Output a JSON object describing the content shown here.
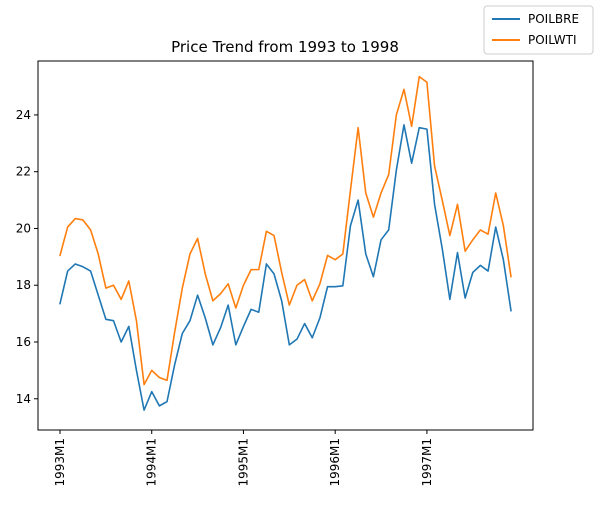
{
  "chart_data": {
    "type": "line",
    "title": "Price Trend from 1993 to 1998",
    "xlabel": "",
    "ylabel": "",
    "x_start": "1993M1",
    "x_tick_labels": [
      "1993M1",
      "1994M1",
      "1995M1",
      "1996M1",
      "1997M1"
    ],
    "x_ticks": [
      "1993M1",
      "1994M1",
      "1995M1",
      "1996M1",
      "1997M1"
    ],
    "y_ticks": [
      14,
      16,
      18,
      20,
      22,
      24
    ],
    "ylim": [
      12.9,
      25.9
    ],
    "grid": false,
    "legend_position": "top-right",
    "x": [
      "1993M1",
      "1993M2",
      "1993M3",
      "1993M4",
      "1993M5",
      "1993M6",
      "1993M7",
      "1993M8",
      "1993M9",
      "1993M10",
      "1993M11",
      "1993M12",
      "1994M1",
      "1994M2",
      "1994M3",
      "1994M4",
      "1994M5",
      "1994M6",
      "1994M7",
      "1994M8",
      "1994M9",
      "1994M10",
      "1994M11",
      "1994M12",
      "1995M1",
      "1995M2",
      "1995M3",
      "1995M4",
      "1995M5",
      "1995M6",
      "1995M7",
      "1995M8",
      "1995M9",
      "1995M10",
      "1995M11",
      "1995M12",
      "1996M1",
      "1996M2",
      "1996M3",
      "1996M4",
      "1996M5",
      "1996M6",
      "1996M7",
      "1996M8",
      "1996M9",
      "1996M10",
      "1996M11",
      "1996M12",
      "1997M1",
      "1997M2",
      "1997M3",
      "1997M4",
      "1997M5",
      "1997M6",
      "1997M7",
      "1997M8",
      "1997M9",
      "1997M10",
      "1997M11",
      "1997M12"
    ],
    "series": [
      {
        "name": "POILBRE",
        "color": "#1f77b4",
        "values": [
          17.35,
          18.5,
          18.75,
          18.65,
          18.5,
          17.65,
          16.8,
          16.75,
          16.0,
          16.55,
          15.0,
          13.6,
          14.25,
          13.75,
          13.9,
          15.2,
          16.3,
          16.75,
          17.65,
          16.85,
          15.9,
          16.5,
          17.3,
          15.9,
          16.55,
          17.15,
          17.05,
          18.75,
          18.4,
          17.45,
          15.9,
          16.1,
          16.65,
          16.15,
          16.85,
          17.95,
          17.95,
          17.98,
          20.1,
          21.0,
          19.1,
          18.3,
          19.6,
          19.95,
          22.05,
          23.65,
          22.3,
          23.55,
          23.5,
          20.85,
          19.3,
          17.5,
          19.15,
          17.55,
          18.45,
          18.7,
          18.5,
          20.05,
          18.9,
          17.1
        ]
      },
      {
        "name": "POILWTI",
        "color": "#ff7f0e",
        "values": [
          19.05,
          20.05,
          20.35,
          20.3,
          19.95,
          19.1,
          17.9,
          18.0,
          17.5,
          18.15,
          16.75,
          14.5,
          15.0,
          14.75,
          14.65,
          16.35,
          17.9,
          19.1,
          19.65,
          18.4,
          17.45,
          17.7,
          18.05,
          17.2,
          18.0,
          18.55,
          18.55,
          19.9,
          19.75,
          18.45,
          17.3,
          18.0,
          18.2,
          17.45,
          18.05,
          19.05,
          18.9,
          19.1,
          21.35,
          23.55,
          21.25,
          20.4,
          21.25,
          21.9,
          24.0,
          24.9,
          23.6,
          25.35,
          25.15,
          22.2,
          21.0,
          19.75,
          20.85,
          19.2,
          19.6,
          19.95,
          19.8,
          21.25,
          20.1,
          18.3
        ]
      }
    ]
  }
}
